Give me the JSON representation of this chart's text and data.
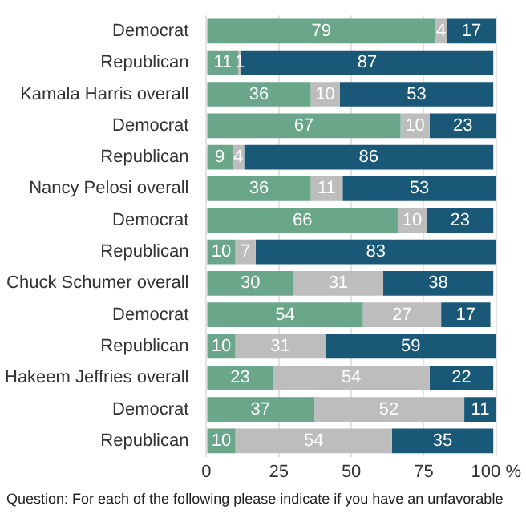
{
  "chart_data": {
    "type": "bar",
    "orientation": "horizontal",
    "stacked": true,
    "categories": [
      "Democrat",
      "Republican",
      "Kamala Harris overall",
      "Democrat",
      "Republican",
      "Nancy Pelosi overall",
      "Democrat",
      "Republican",
      "Chuck Schumer overall",
      "Democrat",
      "Republican",
      "Hakeem Jeffries overall",
      "Democrat",
      "Republican"
    ],
    "series": [
      {
        "color": "#6aa68a",
        "values": [
          79,
          11,
          36,
          67,
          9,
          36,
          66,
          10,
          30,
          54,
          10,
          23,
          37,
          10
        ]
      },
      {
        "color": "#bdbdbd",
        "values": [
          4,
          1,
          10,
          10,
          4,
          11,
          10,
          7,
          31,
          27,
          31,
          54,
          52,
          54
        ]
      },
      {
        "color": "#1a5878",
        "values": [
          17,
          87,
          53,
          23,
          86,
          53,
          23,
          83,
          38,
          17,
          59,
          22,
          11,
          35
        ]
      }
    ],
    "xlim": [
      0,
      100
    ],
    "xticks": [
      0,
      25,
      50,
      75,
      {
        "value": 100,
        "label": "100 %"
      }
    ],
    "grid": "x",
    "legend": false,
    "data_labels": true,
    "annotations": [
      "Question: For each of the following please indicate if you have an unfavorable"
    ]
  }
}
